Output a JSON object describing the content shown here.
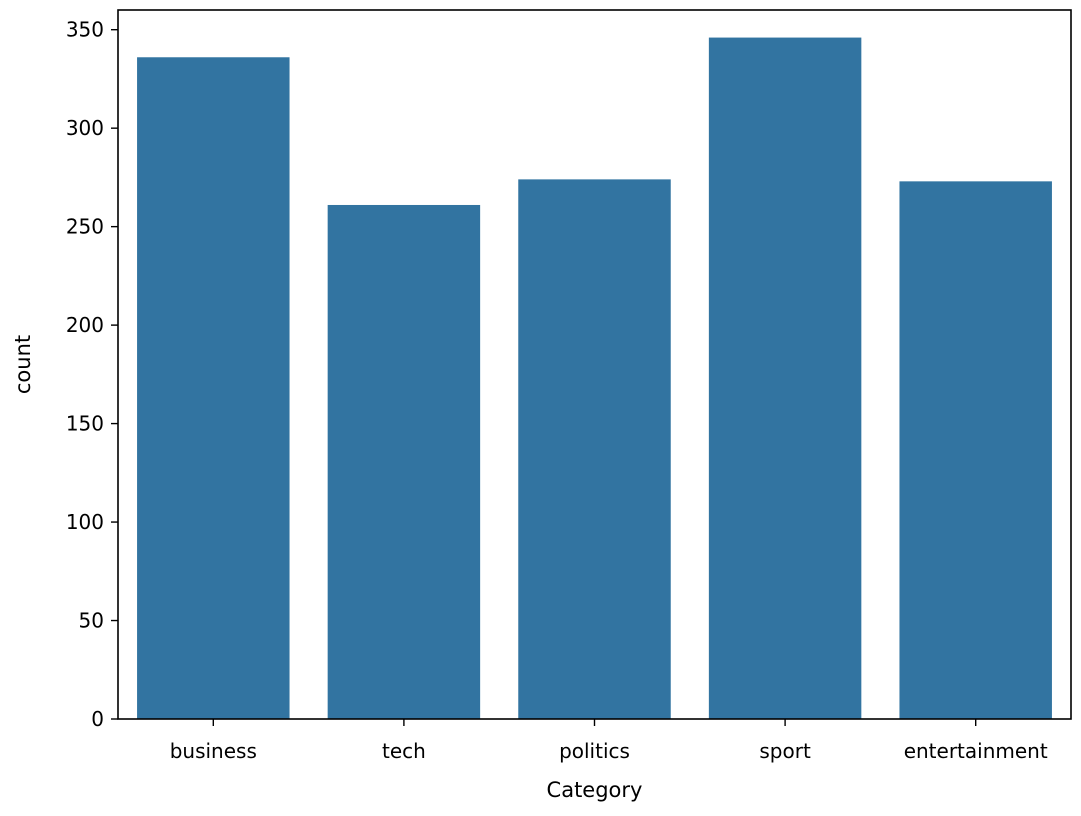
{
  "chart_data": {
    "type": "bar",
    "title": "",
    "xlabel": "Category",
    "ylabel": "count",
    "categories": [
      "business",
      "tech",
      "politics",
      "sport",
      "entertainment"
    ],
    "values": [
      336,
      261,
      274,
      346,
      273
    ],
    "ylim": [
      0,
      360
    ],
    "yticks": [
      0,
      50,
      100,
      150,
      200,
      250,
      300,
      350
    ],
    "grid": false,
    "legend": "none",
    "bar_color": "#3274a1"
  }
}
